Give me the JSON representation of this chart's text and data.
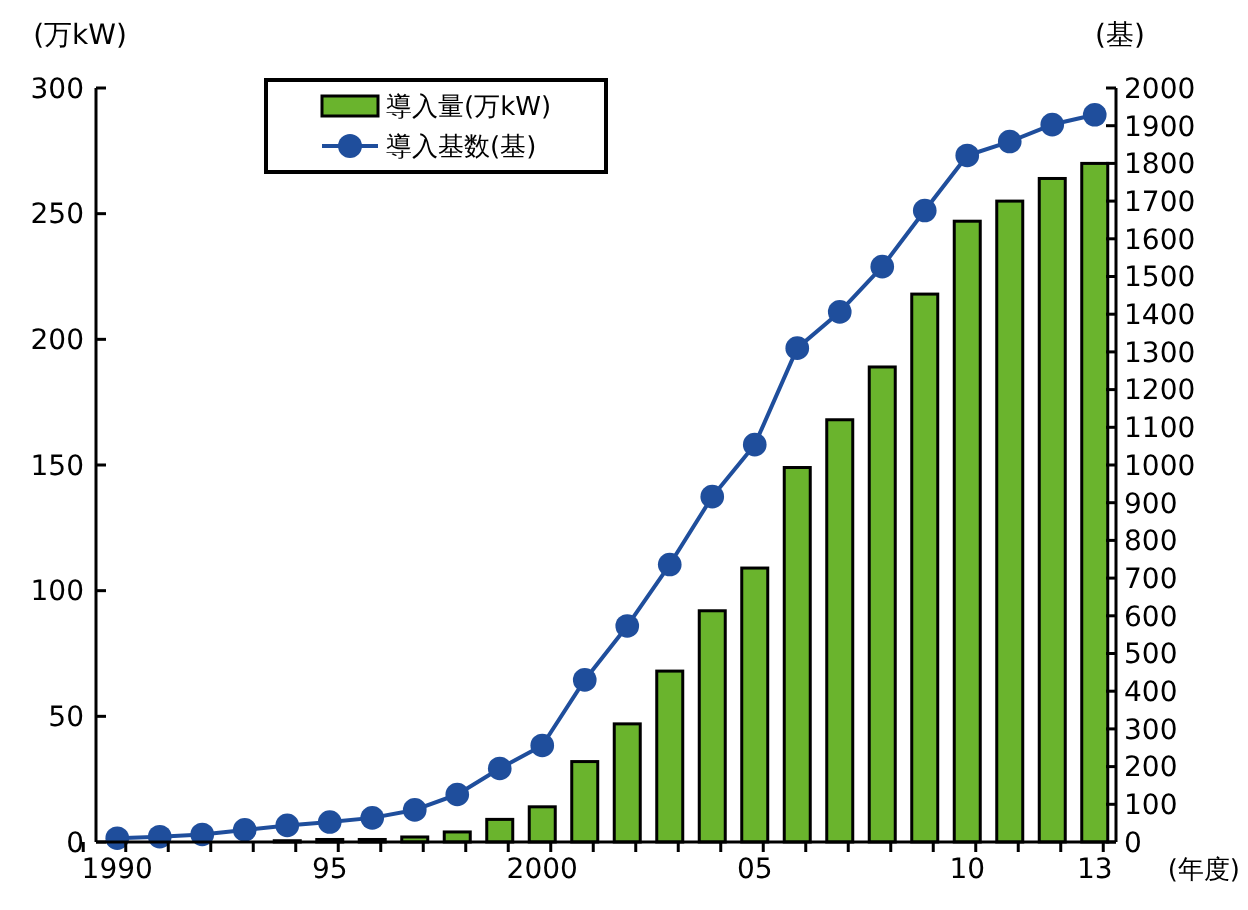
{
  "chart_data": {
    "type": "bar",
    "xlabel": "(年度)",
    "ylabel": "(万kW)",
    "y2label": "(基)",
    "categories": [
      "1990",
      null,
      null,
      null,
      null,
      "95",
      null,
      null,
      null,
      null,
      "2000",
      null,
      null,
      null,
      null,
      "05",
      null,
      null,
      null,
      null,
      "10",
      null,
      null,
      "13"
    ],
    "series": [
      {
        "name": "導入量(万kW)",
        "color": "#6ab42d",
        "values": [
          0,
          0,
          0,
          0,
          0.5,
          1,
          1,
          2,
          4,
          9,
          14,
          32,
          47,
          68,
          92,
          109,
          149,
          168,
          189,
          218,
          247,
          255,
          264,
          270
        ]
      },
      {
        "name": "導入基数(基)",
        "type": "line",
        "axis": "y2",
        "color": "#1f4e9c",
        "marker": "circle",
        "values": [
          10,
          14,
          20,
          32,
          44,
          53,
          64,
          85,
          126,
          195,
          256,
          430,
          573,
          736,
          916,
          1054,
          1310,
          1406,
          1526,
          1675,
          1821,
          1858,
          1903,
          1929
        ]
      }
    ],
    "ylim": [
      0,
      300
    ],
    "yticks": [
      0,
      50,
      100,
      150,
      200,
      250,
      300
    ],
    "y2lim": [
      0,
      2000
    ],
    "y2ticks": [
      0,
      100,
      200,
      300,
      400,
      500,
      600,
      700,
      800,
      900,
      1000,
      1100,
      1200,
      1300,
      1400,
      1500,
      1600,
      1700,
      1800,
      1900,
      2000
    ],
    "legend": "top"
  }
}
